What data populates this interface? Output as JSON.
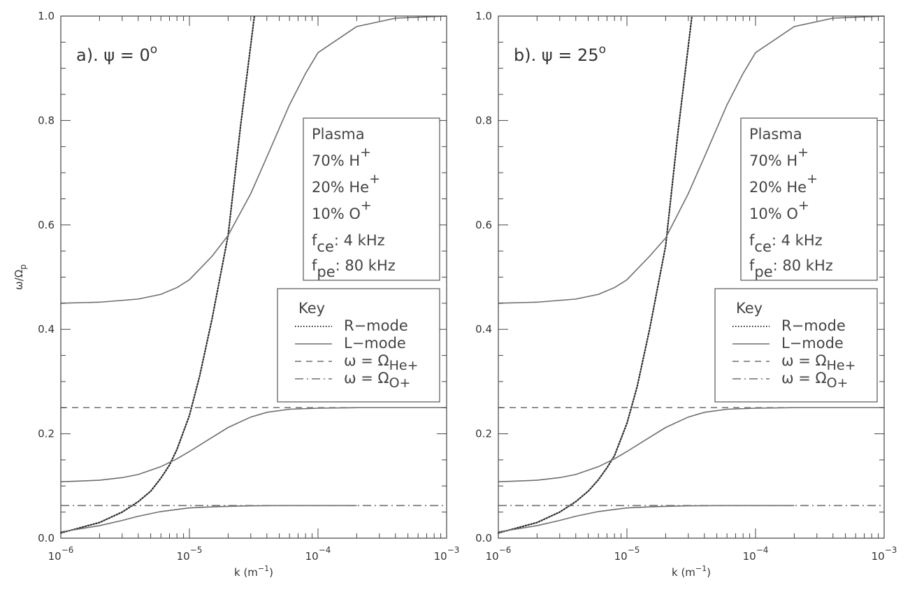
{
  "chart_data": [
    {
      "type": "line",
      "panel_label": "a). ψ = 0",
      "panel_label_sup": "o",
      "xlabel": "k (m",
      "xlabel_sup": "−1",
      "xlabel_tail": ")",
      "ylabel": "ω/Ω",
      "ylabel_sub": "p",
      "xscale": "log",
      "xlim": [
        1e-06,
        0.001
      ],
      "ylim": [
        0.0,
        1.0
      ],
      "x_ticks": [
        "10",
        "10",
        "10",
        "10"
      ],
      "x_tick_exps": [
        "−6",
        "−5",
        "−4",
        "−3"
      ],
      "y_ticks": [
        "0.0",
        "0.2",
        "0.4",
        "0.6",
        "0.8",
        "1.0"
      ],
      "grid": false,
      "series": [
        {
          "name": "R-mode",
          "style": "dotted",
          "x": [
            1e-06,
            2e-06,
            3e-06,
            4e-06,
            5e-06,
            6e-06,
            7e-06,
            8e-06,
            1e-05,
            1.2e-05,
            1.5e-05,
            2e-05,
            2.5e-05,
            3.2e-05
          ],
          "y": [
            0.01,
            0.03,
            0.05,
            0.07,
            0.09,
            0.115,
            0.14,
            0.17,
            0.235,
            0.31,
            0.42,
            0.58,
            0.79,
            1.0
          ]
        },
        {
          "name": "L-mode",
          "style": "solid",
          "x": [
            1e-06,
            2e-06,
            4e-06,
            6e-06,
            8e-06,
            1e-05,
            1.5e-05,
            2e-05,
            3e-05,
            4e-05,
            6e-05,
            8e-05,
            0.0001,
            0.0002,
            0.0004,
            0.001
          ],
          "y": [
            0.45,
            0.452,
            0.458,
            0.467,
            0.48,
            0.495,
            0.54,
            0.58,
            0.66,
            0.73,
            0.83,
            0.89,
            0.93,
            0.98,
            0.996,
            1.0
          ]
        },
        {
          "name": "L-mode",
          "style": "solid",
          "x": [
            1e-06,
            2e-06,
            3e-06,
            4e-06,
            6e-06,
            8e-06,
            1e-05,
            1.5e-05,
            2e-05,
            3e-05,
            4e-05,
            6e-05,
            0.0001,
            0.0002,
            0.001
          ],
          "y": [
            0.108,
            0.111,
            0.116,
            0.122,
            0.137,
            0.152,
            0.166,
            0.193,
            0.212,
            0.232,
            0.241,
            0.247,
            0.249,
            0.25,
            0.25
          ]
        },
        {
          "name": "L-mode",
          "style": "solid",
          "x": [
            1e-06,
            2e-06,
            3e-06,
            4e-06,
            6e-06,
            8e-06,
            1e-05,
            1.5e-05,
            2e-05,
            3e-05,
            5e-05,
            0.0001,
            0.0002
          ],
          "y": [
            0.012,
            0.024,
            0.034,
            0.042,
            0.051,
            0.055,
            0.058,
            0.06,
            0.061,
            0.062,
            0.0625,
            0.0625,
            0.0625
          ]
        },
        {
          "name": "ω = Ω",
          "name_sub": "He+",
          "style": "dashed",
          "x": [
            1e-06,
            0.001
          ],
          "y": [
            0.25,
            0.25
          ]
        },
        {
          "name": "ω = Ω",
          "name_sub": "O+",
          "style": "dashdot",
          "x": [
            1e-06,
            0.001
          ],
          "y": [
            0.0625,
            0.0625
          ]
        }
      ],
      "info_box": {
        "title": "Plasma",
        "lines": [
          {
            "text": "70% H",
            "sup": "+",
            "sub": ""
          },
          {
            "text": "20% He",
            "sup": "+",
            "sub": ""
          },
          {
            "text": "10% O",
            "sup": "+",
            "sub": ""
          },
          {
            "text": "f",
            "sup": "",
            "sub": "ce",
            "tail": ": 4 kHz"
          },
          {
            "text": "f",
            "sup": "",
            "sub": "pe",
            "tail": ": 80 kHz"
          }
        ]
      },
      "legend": {
        "title": "Key",
        "entries": [
          {
            "label": "R−mode",
            "style": "dotted",
            "sub": ""
          },
          {
            "label": "L−mode",
            "style": "solid",
            "sub": ""
          },
          {
            "label": "ω = Ω",
            "style": "dashed",
            "sub": "He+"
          },
          {
            "label": "ω = Ω",
            "style": "dashdot",
            "sub": "O+"
          }
        ]
      }
    },
    {
      "type": "line",
      "panel_label": "b). ψ = 25",
      "panel_label_sup": "o",
      "xlabel": "k (m",
      "xlabel_sup": "−1",
      "xlabel_tail": ")",
      "ylabel": "",
      "ylabel_sub": "",
      "xscale": "log",
      "xlim": [
        1e-06,
        0.001
      ],
      "ylim": [
        0.0,
        1.0
      ],
      "x_ticks": [
        "10",
        "10",
        "10",
        "10"
      ],
      "x_tick_exps": [
        "−6",
        "−5",
        "−4",
        "−3"
      ],
      "y_ticks": [
        "0.0",
        "0.2",
        "0.4",
        "0.6",
        "0.8",
        "1.0"
      ],
      "grid": false,
      "series": [
        {
          "name": "R-mode",
          "style": "dotted",
          "x": [
            1e-06,
            2e-06,
            3e-06,
            4e-06,
            5e-06,
            6e-06,
            7e-06,
            8e-06,
            1e-05,
            1.2e-05,
            1.5e-05,
            2e-05,
            2.5e-05,
            3.2e-05
          ],
          "y": [
            0.01,
            0.03,
            0.05,
            0.07,
            0.09,
            0.112,
            0.135,
            0.158,
            0.22,
            0.29,
            0.4,
            0.56,
            0.78,
            1.0
          ]
        },
        {
          "name": "L-mode",
          "style": "solid",
          "x": [
            1e-06,
            2e-06,
            4e-06,
            6e-06,
            8e-06,
            1e-05,
            1.5e-05,
            2e-05,
            3e-05,
            4e-05,
            6e-05,
            8e-05,
            0.0001,
            0.0002,
            0.0004,
            0.001
          ],
          "y": [
            0.45,
            0.452,
            0.458,
            0.467,
            0.48,
            0.495,
            0.54,
            0.575,
            0.66,
            0.73,
            0.83,
            0.89,
            0.93,
            0.98,
            0.996,
            1.0
          ]
        },
        {
          "name": "L-mode",
          "style": "solid",
          "x": [
            1e-06,
            2e-06,
            3e-06,
            4e-06,
            6e-06,
            8e-06,
            1e-05,
            1.5e-05,
            2e-05,
            3e-05,
            4e-05,
            6e-05,
            0.0001,
            0.0002,
            0.001
          ],
          "y": [
            0.108,
            0.111,
            0.116,
            0.122,
            0.137,
            0.152,
            0.166,
            0.193,
            0.212,
            0.232,
            0.241,
            0.247,
            0.249,
            0.25,
            0.25
          ]
        },
        {
          "name": "L-mode",
          "style": "solid",
          "x": [
            1e-06,
            2e-06,
            3e-06,
            4e-06,
            6e-06,
            8e-06,
            1e-05,
            1.5e-05,
            2e-05,
            3e-05,
            5e-05,
            0.0001,
            0.0002
          ],
          "y": [
            0.012,
            0.024,
            0.034,
            0.042,
            0.051,
            0.055,
            0.058,
            0.06,
            0.061,
            0.062,
            0.0625,
            0.0625,
            0.0625
          ]
        },
        {
          "name": "ω = Ω",
          "name_sub": "He+",
          "style": "dashed",
          "x": [
            1e-06,
            0.001
          ],
          "y": [
            0.25,
            0.25
          ]
        },
        {
          "name": "ω = Ω",
          "name_sub": "O+",
          "style": "dashdot",
          "x": [
            1e-06,
            0.001
          ],
          "y": [
            0.0625,
            0.0625
          ]
        }
      ],
      "info_box": {
        "title": "Plasma",
        "lines": [
          {
            "text": "70% H",
            "sup": "+",
            "sub": ""
          },
          {
            "text": "20% He",
            "sup": "+",
            "sub": ""
          },
          {
            "text": "10% O",
            "sup": "+",
            "sub": ""
          },
          {
            "text": "f",
            "sup": "",
            "sub": "ce",
            "tail": ": 4 kHz"
          },
          {
            "text": "f",
            "sup": "",
            "sub": "pe",
            "tail": ": 80 kHz"
          }
        ]
      },
      "legend": {
        "title": "Key",
        "entries": [
          {
            "label": "R−mode",
            "style": "dotted",
            "sub": ""
          },
          {
            "label": "L−mode",
            "style": "solid",
            "sub": ""
          },
          {
            "label": "ω = Ω",
            "style": "dashed",
            "sub": "He+"
          },
          {
            "label": "ω = Ω",
            "style": "dashdot",
            "sub": "O+"
          }
        ]
      }
    }
  ],
  "colors": {
    "curve": "#6e6e6e",
    "rmode": "#2a2a2a",
    "axis": "#444444"
  }
}
